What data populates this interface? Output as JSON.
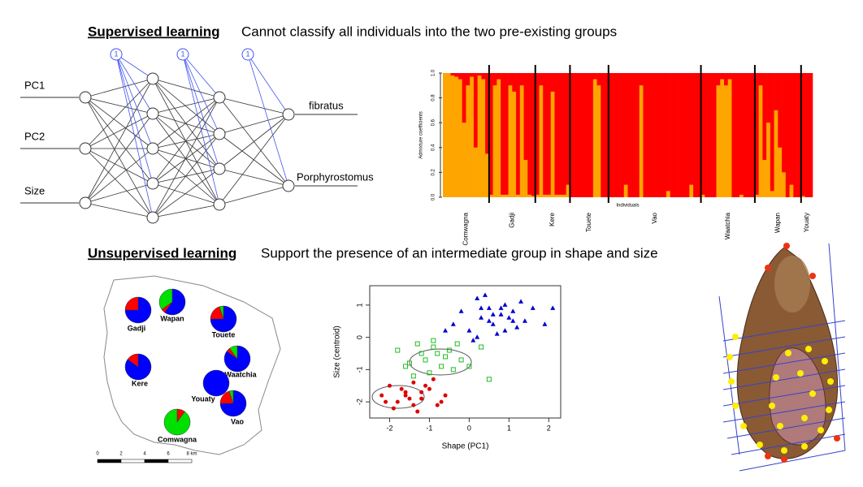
{
  "top": {
    "heading": "Supervised learning",
    "text": "Cannot classify all individuals into the two pre-existing groups"
  },
  "bottom": {
    "heading": "Unsupervised learning",
    "text": "Support the presence of an intermediate group in shape and size"
  },
  "network": {
    "inputs": [
      "PC1",
      "PC2",
      "Size"
    ],
    "outputs": [
      "fibratus",
      "Porphyrostomus"
    ],
    "bias_label": "1"
  },
  "admixture": {
    "y_label": "Admixture coefficients",
    "x_label": "Individuals",
    "ylim": [
      0,
      1
    ],
    "yticks": [
      {
        "value": 0,
        "label": "0.0"
      },
      0.2,
      0.4,
      0.6,
      0.8,
      {
        "value": 1,
        "label": "1.0"
      }
    ],
    "colors": [
      "#ffa500",
      "#ff0000"
    ],
    "populations": [
      {
        "name": "Comwagna",
        "values": [
          1,
          1,
          0.98,
          0.97,
          0.95,
          0.6,
          0.9,
          0.97,
          0.4,
          0.98,
          0.95,
          0.35
        ]
      },
      {
        "name": "Gadji",
        "values": [
          0.02,
          0.9,
          0.95,
          0.02,
          0.02,
          0.9,
          0.85,
          0.02,
          0.9,
          0.3,
          0.02,
          0.01
        ]
      },
      {
        "name": "Kere",
        "values": [
          0.02,
          0.9,
          0.02,
          0.02,
          0.85,
          0.02,
          0.02,
          0.02,
          0.1
        ]
      },
      {
        "name": "Touete",
        "values": [
          0,
          0,
          0,
          0,
          0,
          0,
          0.95,
          0.9,
          0,
          0
        ]
      },
      {
        "name": "Vao",
        "values": [
          0,
          0,
          0,
          0,
          0.1,
          0,
          0,
          0,
          0.9,
          0,
          0,
          0,
          0,
          0,
          0,
          0.05,
          0,
          0,
          0,
          0,
          0,
          0.1,
          0,
          0
        ]
      },
      {
        "name": "Waatchia",
        "values": [
          0.02,
          0,
          0,
          0,
          0.9,
          0.95,
          0.9,
          0.95,
          0,
          0,
          0.02,
          0,
          0,
          0
        ]
      },
      {
        "name": "Wapan",
        "values": [
          0.02,
          0.9,
          0.3,
          0.6,
          0.05,
          0.7,
          0.4,
          0.2,
          0,
          0.1,
          0,
          0
        ]
      },
      {
        "name": "Youaty",
        "values": [
          0.01,
          0,
          0
        ]
      }
    ]
  },
  "map": {
    "colors": [
      "#0000ff",
      "#ff0000",
      "#00e000"
    ],
    "sites": [
      {
        "name": "Gadji",
        "values": [
          0.75,
          0.25,
          0
        ]
      },
      {
        "name": "Wapan",
        "values": [
          0.6,
          0.05,
          0.35
        ]
      },
      {
        "name": "Touete",
        "values": [
          0.75,
          0.2,
          0.05
        ]
      },
      {
        "name": "Kere",
        "values": [
          0.85,
          0.15,
          0
        ]
      },
      {
        "name": "Waatchia",
        "values": [
          0.85,
          0.05,
          0.1
        ]
      },
      {
        "name": "Youaty",
        "values": [
          1,
          0,
          0
        ]
      },
      {
        "name": "Vao",
        "values": [
          0.75,
          0.2,
          0.05
        ]
      },
      {
        "name": "Comwagna",
        "values": [
          0,
          0.1,
          0.9
        ]
      }
    ],
    "scale_labels": [
      "0",
      "2",
      "4",
      "6",
      "8 km"
    ]
  },
  "chart_data": {
    "type": "scatter",
    "x_label": "Shape (PC1)",
    "y_label": "Size (centroid)",
    "xlim": [
      -2.5,
      2.3
    ],
    "ylim": [
      -2.5,
      1.6
    ],
    "xticks": [
      -2,
      -1,
      0,
      1,
      2
    ],
    "yticks": [
      -2,
      -1,
      0,
      1
    ],
    "series": [
      {
        "color": "#0000cc",
        "x": [
          0.2,
          0.5,
          0.8,
          1.1,
          1.4,
          0.3,
          0.6,
          0.9,
          1.2,
          0.0,
          -0.2,
          0.4,
          0.7,
          1.0,
          1.6,
          1.9,
          0.1,
          0.5,
          0.8,
          -0.4,
          1.3,
          0.2,
          0.9,
          2.1,
          -0.6,
          0.6,
          1.1,
          0.3
        ],
        "values": [
          1.2,
          0.9,
          0.7,
          0.8,
          0.5,
          0.6,
          0.4,
          1.0,
          0.3,
          0.2,
          0.8,
          1.3,
          0.1,
          0.6,
          0.9,
          0.4,
          -0.1,
          0.5,
          0.9,
          0.4,
          1.1,
          0.0,
          0.2,
          0.9,
          0.2,
          0.7,
          0.5,
          0.9
        ]
      },
      {
        "color": "#22bb22",
        "x": [
          -1.8,
          -1.5,
          -1.2,
          -0.9,
          -0.6,
          -0.3,
          0.0,
          -1.0,
          -0.7,
          -1.3,
          -0.5,
          -0.2,
          0.3,
          -1.6,
          -0.8,
          -1.1,
          -0.4,
          0.5,
          -0.9,
          -1.4
        ],
        "values": [
          -0.4,
          -0.8,
          -0.5,
          -0.3,
          -0.6,
          -0.2,
          -0.9,
          -1.1,
          -0.9,
          -0.2,
          -0.4,
          -0.7,
          -0.3,
          -0.9,
          -0.5,
          -0.7,
          -1.0,
          -1.3,
          -0.1,
          -1.2
        ]
      },
      {
        "color": "#dd0000",
        "x": [
          -2.2,
          -2.0,
          -1.8,
          -1.6,
          -1.4,
          -1.2,
          -1.0,
          -0.8,
          -0.6,
          -1.9,
          -1.7,
          -1.5,
          -1.3,
          -1.1,
          -0.9,
          -2.1,
          -1.6,
          -1.2,
          -0.7,
          -1.4
        ],
        "values": [
          -1.8,
          -1.5,
          -2.0,
          -1.7,
          -1.4,
          -1.9,
          -1.6,
          -2.1,
          -1.8,
          -2.2,
          -1.6,
          -1.9,
          -2.3,
          -1.5,
          -1.3,
          -2.0,
          -1.8,
          -1.7,
          -2.0,
          -2.1
        ]
      }
    ]
  }
}
